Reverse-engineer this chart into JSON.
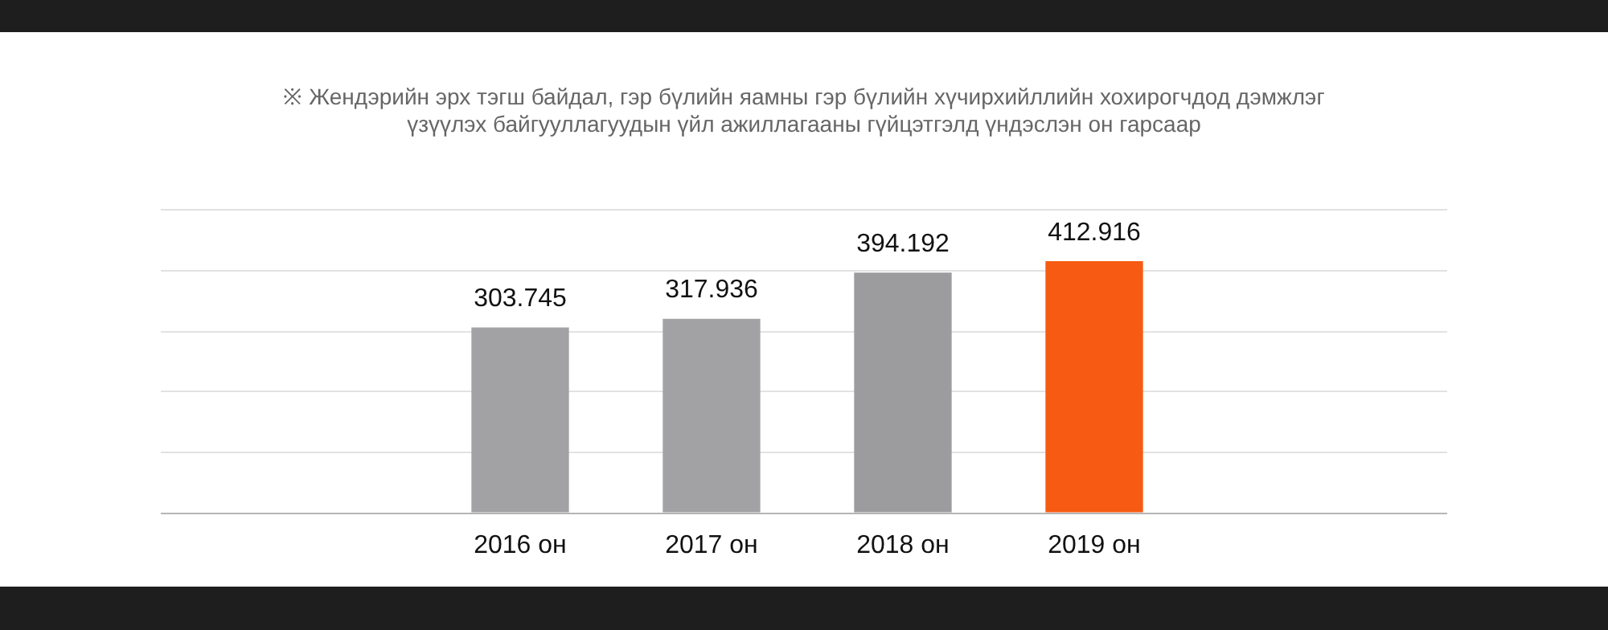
{
  "chart_data": {
    "type": "bar",
    "title": "※ Жендэрийн эрх тэгш байдал, гэр бүлийн яамны гэр бүлийн хүчирхийллийн хохирогчдод дэмжлэг үзүүлэх байгууллагуудын үйл ажиллагааны гүйцэтгэлд үндэслэн он гарсаар",
    "categories": [
      "2016 он",
      "2017 он",
      "2018 он",
      "2019 он"
    ],
    "values": [
      303.745,
      317.936,
      394.192,
      412.916
    ],
    "colors": [
      "#a2a2a4",
      "#a2a2a4",
      "#9c9c9e",
      "#f75a12"
    ],
    "data_labels": true,
    "relative": false,
    "grid": "y"
  }
}
